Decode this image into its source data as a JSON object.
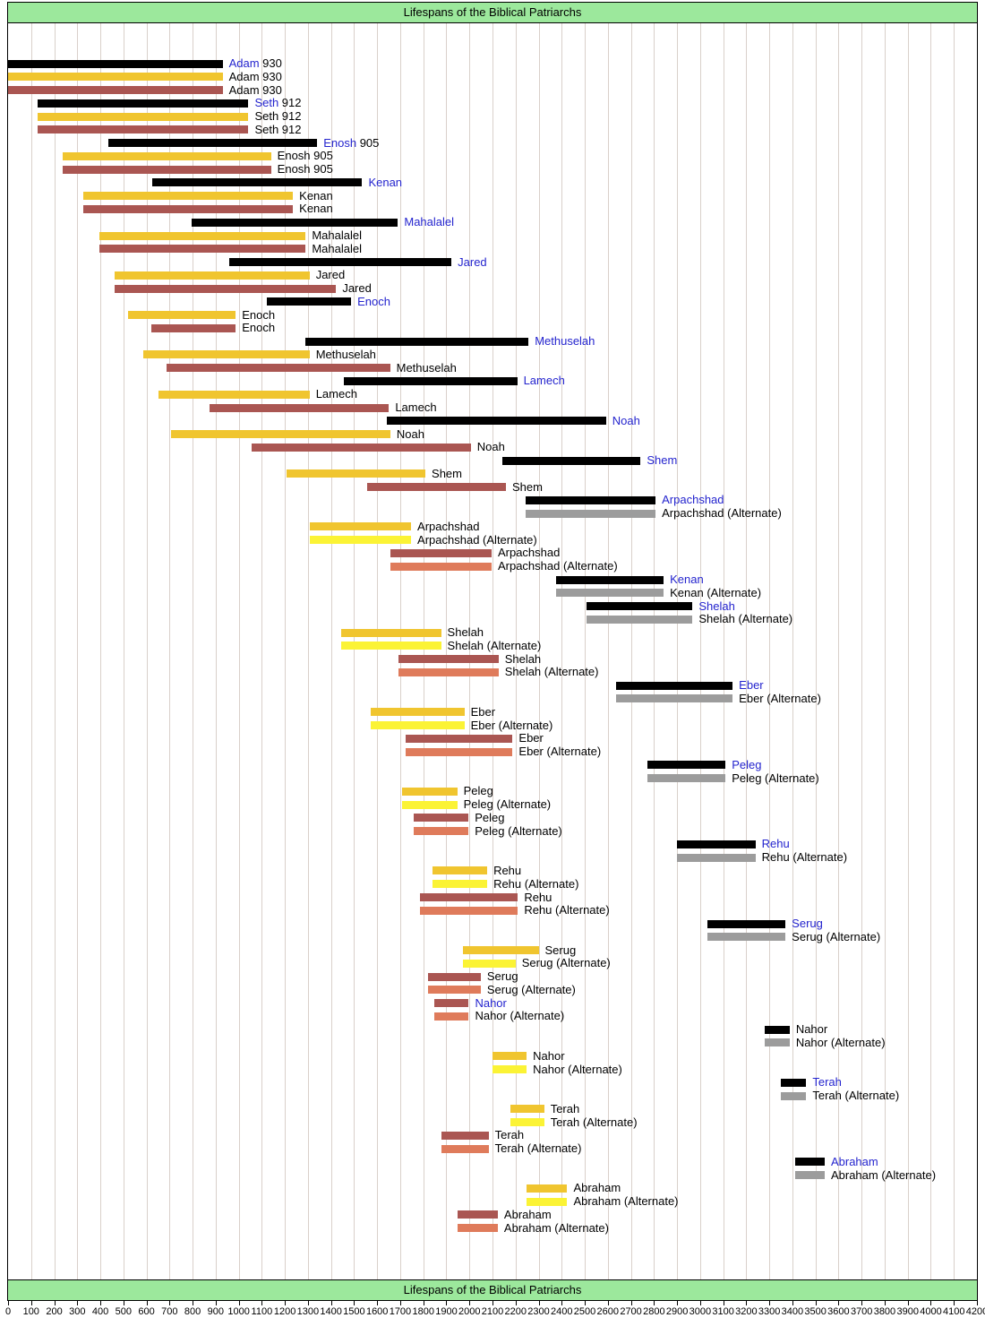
{
  "chart_data": {
    "type": "bar",
    "orientation": "horizontal",
    "title": "Lifespans of the Biblical Patriarchs",
    "xlabel": "",
    "ylabel": "",
    "axis": {
      "min": 0,
      "max": 4200,
      "step": 100,
      "grid": true
    },
    "colors": {
      "black": "#000000",
      "gray": "#9C9C9C",
      "gold": "#F0C52F",
      "yellow": "#FBF335",
      "brick": "#AA5652",
      "orange": "#DF7B5B",
      "blue_label": "#2424CE",
      "green_band": "#9CE89C",
      "gridline": "#D9D0CA",
      "border": "#000000"
    },
    "rows": [
      {
        "label": "Adam",
        "value": "930",
        "color": "black",
        "start": 0,
        "end": 930,
        "blue": true,
        "alternate": false
      },
      {
        "label": "Adam",
        "value": "930",
        "color": "gold",
        "start": 0,
        "end": 930,
        "blue": false,
        "alternate": false
      },
      {
        "label": "Adam",
        "value": "930",
        "color": "brick",
        "start": 0,
        "end": 930,
        "blue": false,
        "alternate": false
      },
      {
        "label": "Seth",
        "value": "912",
        "color": "black",
        "start": 130,
        "end": 1042,
        "blue": true,
        "alternate": false
      },
      {
        "label": "Seth",
        "value": "912",
        "color": "gold",
        "start": 130,
        "end": 1042,
        "blue": false,
        "alternate": false
      },
      {
        "label": "Seth",
        "value": "912",
        "color": "brick",
        "start": 130,
        "end": 1042,
        "blue": false,
        "alternate": false
      },
      {
        "label": "Enosh",
        "value": "905",
        "color": "black",
        "start": 435,
        "end": 1340,
        "blue": true,
        "alternate": false
      },
      {
        "label": "Enosh",
        "value": "905",
        "color": "gold",
        "start": 235,
        "end": 1140,
        "blue": false,
        "alternate": false
      },
      {
        "label": "Enosh",
        "value": "905",
        "color": "brick",
        "start": 235,
        "end": 1140,
        "blue": false,
        "alternate": false
      },
      {
        "label": "Kenan",
        "value": "",
        "color": "black",
        "start": 625,
        "end": 1535,
        "blue": true,
        "alternate": false
      },
      {
        "label": "Kenan",
        "value": "",
        "color": "gold",
        "start": 325,
        "end": 1235,
        "blue": false,
        "alternate": false
      },
      {
        "label": "Kenan",
        "value": "",
        "color": "brick",
        "start": 325,
        "end": 1235,
        "blue": false,
        "alternate": false
      },
      {
        "label": "Mahalalel",
        "value": "",
        "color": "black",
        "start": 795,
        "end": 1690,
        "blue": true,
        "alternate": false
      },
      {
        "label": "Mahalalel",
        "value": "",
        "color": "gold",
        "start": 395,
        "end": 1290,
        "blue": false,
        "alternate": false
      },
      {
        "label": "Mahalalel",
        "value": "",
        "color": "brick",
        "start": 395,
        "end": 1290,
        "blue": false,
        "alternate": false
      },
      {
        "label": "Jared",
        "value": "",
        "color": "black",
        "start": 960,
        "end": 1922,
        "blue": true,
        "alternate": false
      },
      {
        "label": "Jared",
        "value": "",
        "color": "gold",
        "start": 460,
        "end": 1307,
        "blue": false,
        "alternate": false
      },
      {
        "label": "Jared",
        "value": "",
        "color": "brick",
        "start": 460,
        "end": 1422,
        "blue": false,
        "alternate": false
      },
      {
        "label": "Enoch",
        "value": "",
        "color": "black",
        "start": 1122,
        "end": 1487,
        "blue": true,
        "alternate": false
      },
      {
        "label": "Enoch",
        "value": "",
        "color": "gold",
        "start": 522,
        "end": 987,
        "blue": false,
        "alternate": false
      },
      {
        "label": "Enoch",
        "value": "",
        "color": "brick",
        "start": 622,
        "end": 987,
        "blue": false,
        "alternate": false
      },
      {
        "label": "Methuselah",
        "value": "",
        "color": "black",
        "start": 1287,
        "end": 2256,
        "blue": true,
        "alternate": false
      },
      {
        "label": "Methuselah",
        "value": "",
        "color": "gold",
        "start": 587,
        "end": 1307,
        "blue": false,
        "alternate": false
      },
      {
        "label": "Methuselah",
        "value": "",
        "color": "brick",
        "start": 687,
        "end": 1656,
        "blue": false,
        "alternate": false
      },
      {
        "label": "Lamech",
        "value": "",
        "color": "black",
        "start": 1454,
        "end": 2207,
        "blue": true,
        "alternate": false
      },
      {
        "label": "Lamech",
        "value": "",
        "color": "gold",
        "start": 654,
        "end": 1307,
        "blue": false,
        "alternate": false
      },
      {
        "label": "Lamech",
        "value": "",
        "color": "brick",
        "start": 874,
        "end": 1651,
        "blue": false,
        "alternate": false
      },
      {
        "label": "Noah",
        "value": "",
        "color": "black",
        "start": 1642,
        "end": 2592,
        "blue": true,
        "alternate": false
      },
      {
        "label": "Noah",
        "value": "",
        "color": "gold",
        "start": 707,
        "end": 1657,
        "blue": false,
        "alternate": false
      },
      {
        "label": "Noah",
        "value": "",
        "color": "brick",
        "start": 1056,
        "end": 2006,
        "blue": false,
        "alternate": false
      },
      {
        "label": "Shem",
        "value": "",
        "color": "black",
        "start": 2142,
        "end": 2742,
        "blue": true,
        "alternate": false
      },
      {
        "label": "Shem",
        "value": "",
        "color": "gold",
        "start": 1209,
        "end": 1809,
        "blue": false,
        "alternate": false
      },
      {
        "label": "Shem",
        "value": "",
        "color": "brick",
        "start": 1558,
        "end": 2158,
        "blue": false,
        "alternate": false
      },
      {
        "label": "Arpachshad",
        "value": "",
        "color": "black",
        "start": 2242,
        "end": 2807,
        "blue": true,
        "alternate": false
      },
      {
        "label": "Arpachshad",
        "value": "",
        "color": "gray",
        "start": 2242,
        "end": 2807,
        "blue": false,
        "alternate": true
      },
      {
        "label": "Arpachshad",
        "value": "",
        "color": "gold",
        "start": 1309,
        "end": 1747,
        "blue": false,
        "alternate": false
      },
      {
        "label": "Arpachshad",
        "value": "",
        "color": "yellow",
        "start": 1309,
        "end": 1747,
        "blue": false,
        "alternate": true
      },
      {
        "label": "Arpachshad",
        "value": "",
        "color": "brick",
        "start": 1658,
        "end": 2096,
        "blue": false,
        "alternate": false
      },
      {
        "label": "Arpachshad",
        "value": "",
        "color": "orange",
        "start": 1658,
        "end": 2096,
        "blue": false,
        "alternate": true
      },
      {
        "label": "Kenan",
        "value": "",
        "color": "black",
        "start": 2377,
        "end": 2842,
        "blue": true,
        "alternate": false
      },
      {
        "label": "Kenan",
        "value": "",
        "color": "gray",
        "start": 2377,
        "end": 2842,
        "blue": false,
        "alternate": true
      },
      {
        "label": "Shelah",
        "value": "",
        "color": "black",
        "start": 2507,
        "end": 2967,
        "blue": true,
        "alternate": false
      },
      {
        "label": "Shelah",
        "value": "",
        "color": "gray",
        "start": 2507,
        "end": 2967,
        "blue": false,
        "alternate": true
      },
      {
        "label": "Shelah",
        "value": "",
        "color": "gold",
        "start": 1444,
        "end": 1877,
        "blue": false,
        "alternate": false
      },
      {
        "label": "Shelah",
        "value": "",
        "color": "yellow",
        "start": 1444,
        "end": 1877,
        "blue": false,
        "alternate": true
      },
      {
        "label": "Shelah",
        "value": "",
        "color": "brick",
        "start": 1693,
        "end": 2126,
        "blue": false,
        "alternate": false
      },
      {
        "label": "Shelah",
        "value": "",
        "color": "orange",
        "start": 1693,
        "end": 2126,
        "blue": false,
        "alternate": true
      },
      {
        "label": "Eber",
        "value": "",
        "color": "black",
        "start": 2637,
        "end": 3141,
        "blue": true,
        "alternate": false
      },
      {
        "label": "Eber",
        "value": "",
        "color": "gray",
        "start": 2637,
        "end": 3141,
        "blue": false,
        "alternate": true
      },
      {
        "label": "Eber",
        "value": "",
        "color": "gold",
        "start": 1574,
        "end": 1978,
        "blue": false,
        "alternate": false
      },
      {
        "label": "Eber",
        "value": "",
        "color": "yellow",
        "start": 1574,
        "end": 1978,
        "blue": false,
        "alternate": true
      },
      {
        "label": "Eber",
        "value": "",
        "color": "brick",
        "start": 1723,
        "end": 2187,
        "blue": false,
        "alternate": false
      },
      {
        "label": "Eber",
        "value": "",
        "color": "orange",
        "start": 1723,
        "end": 2187,
        "blue": false,
        "alternate": true
      },
      {
        "label": "Peleg",
        "value": "",
        "color": "black",
        "start": 2771,
        "end": 3110,
        "blue": true,
        "alternate": false
      },
      {
        "label": "Peleg",
        "value": "",
        "color": "gray",
        "start": 2771,
        "end": 3110,
        "blue": false,
        "alternate": true
      },
      {
        "label": "Peleg",
        "value": "",
        "color": "gold",
        "start": 1708,
        "end": 1947,
        "blue": false,
        "alternate": false
      },
      {
        "label": "Peleg",
        "value": "",
        "color": "yellow",
        "start": 1708,
        "end": 1947,
        "blue": false,
        "alternate": true
      },
      {
        "label": "Peleg",
        "value": "",
        "color": "brick",
        "start": 1757,
        "end": 1996,
        "blue": false,
        "alternate": false
      },
      {
        "label": "Peleg",
        "value": "",
        "color": "orange",
        "start": 1757,
        "end": 1996,
        "blue": false,
        "alternate": true
      },
      {
        "label": "Rehu",
        "value": "",
        "color": "black",
        "start": 2901,
        "end": 3240,
        "blue": true,
        "alternate": false
      },
      {
        "label": "Rehu",
        "value": "",
        "color": "gray",
        "start": 2901,
        "end": 3240,
        "blue": false,
        "alternate": true
      },
      {
        "label": "Rehu",
        "value": "",
        "color": "gold",
        "start": 1838,
        "end": 2077,
        "blue": false,
        "alternate": false
      },
      {
        "label": "Rehu",
        "value": "",
        "color": "yellow",
        "start": 1838,
        "end": 2077,
        "blue": false,
        "alternate": true
      },
      {
        "label": "Rehu",
        "value": "",
        "color": "brick",
        "start": 1787,
        "end": 2210,
        "blue": false,
        "alternate": false
      },
      {
        "label": "Rehu",
        "value": "",
        "color": "orange",
        "start": 1787,
        "end": 2210,
        "blue": false,
        "alternate": true
      },
      {
        "label": "Serug",
        "value": "",
        "color": "black",
        "start": 3033,
        "end": 3370,
        "blue": true,
        "alternate": false
      },
      {
        "label": "Serug",
        "value": "",
        "color": "gray",
        "start": 3033,
        "end": 3370,
        "blue": false,
        "alternate": true
      },
      {
        "label": "Serug",
        "value": "",
        "color": "gold",
        "start": 1970,
        "end": 2300,
        "blue": false,
        "alternate": false
      },
      {
        "label": "Serug",
        "value": "",
        "color": "yellow",
        "start": 1970,
        "end": 2200,
        "blue": false,
        "alternate": true
      },
      {
        "label": "Serug",
        "value": "",
        "color": "brick",
        "start": 1819,
        "end": 2049,
        "blue": false,
        "alternate": false
      },
      {
        "label": "Serug",
        "value": "",
        "color": "orange",
        "start": 1819,
        "end": 2049,
        "blue": false,
        "alternate": true
      },
      {
        "label": "Nahor",
        "value": "",
        "color": "brick",
        "start": 1849,
        "end": 1997,
        "blue": true,
        "alternate": false
      },
      {
        "label": "Nahor",
        "value": "",
        "color": "orange",
        "start": 1849,
        "end": 1997,
        "blue": false,
        "alternate": true
      },
      {
        "label": "Nahor",
        "value": "",
        "color": "black",
        "start": 3280,
        "end": 3388,
        "blue": false,
        "alternate": false
      },
      {
        "label": "Nahor",
        "value": "",
        "color": "gray",
        "start": 3280,
        "end": 3388,
        "blue": false,
        "alternate": true
      },
      {
        "label": "Nahor",
        "value": "",
        "color": "gold",
        "start": 2100,
        "end": 2248,
        "blue": false,
        "alternate": false
      },
      {
        "label": "Nahor",
        "value": "",
        "color": "yellow",
        "start": 2100,
        "end": 2248,
        "blue": false,
        "alternate": true
      },
      {
        "label": "Terah",
        "value": "",
        "color": "black",
        "start": 3348,
        "end": 3460,
        "blue": true,
        "alternate": false
      },
      {
        "label": "Terah",
        "value": "",
        "color": "gray",
        "start": 3348,
        "end": 3460,
        "blue": false,
        "alternate": true
      },
      {
        "label": "Terah",
        "value": "",
        "color": "gold",
        "start": 2179,
        "end": 2324,
        "blue": false,
        "alternate": false
      },
      {
        "label": "Terah",
        "value": "",
        "color": "yellow",
        "start": 2179,
        "end": 2324,
        "blue": false,
        "alternate": true
      },
      {
        "label": "Terah",
        "value": "",
        "color": "brick",
        "start": 1878,
        "end": 2083,
        "blue": false,
        "alternate": false
      },
      {
        "label": "Terah",
        "value": "",
        "color": "orange",
        "start": 1878,
        "end": 2083,
        "blue": false,
        "alternate": true
      },
      {
        "label": "Abraham",
        "value": "",
        "color": "black",
        "start": 3412,
        "end": 3540,
        "blue": true,
        "alternate": false
      },
      {
        "label": "Abraham",
        "value": "",
        "color": "gray",
        "start": 3412,
        "end": 3540,
        "blue": false,
        "alternate": true
      },
      {
        "label": "Abraham",
        "value": "",
        "color": "gold",
        "start": 2249,
        "end": 2424,
        "blue": false,
        "alternate": false
      },
      {
        "label": "Abraham",
        "value": "",
        "color": "yellow",
        "start": 2249,
        "end": 2424,
        "blue": false,
        "alternate": true
      },
      {
        "label": "Abraham",
        "value": "",
        "color": "brick",
        "start": 1948,
        "end": 2123,
        "blue": false,
        "alternate": false
      },
      {
        "label": "Abraham",
        "value": "",
        "color": "orange",
        "start": 1948,
        "end": 2123,
        "blue": false,
        "alternate": true
      }
    ]
  }
}
